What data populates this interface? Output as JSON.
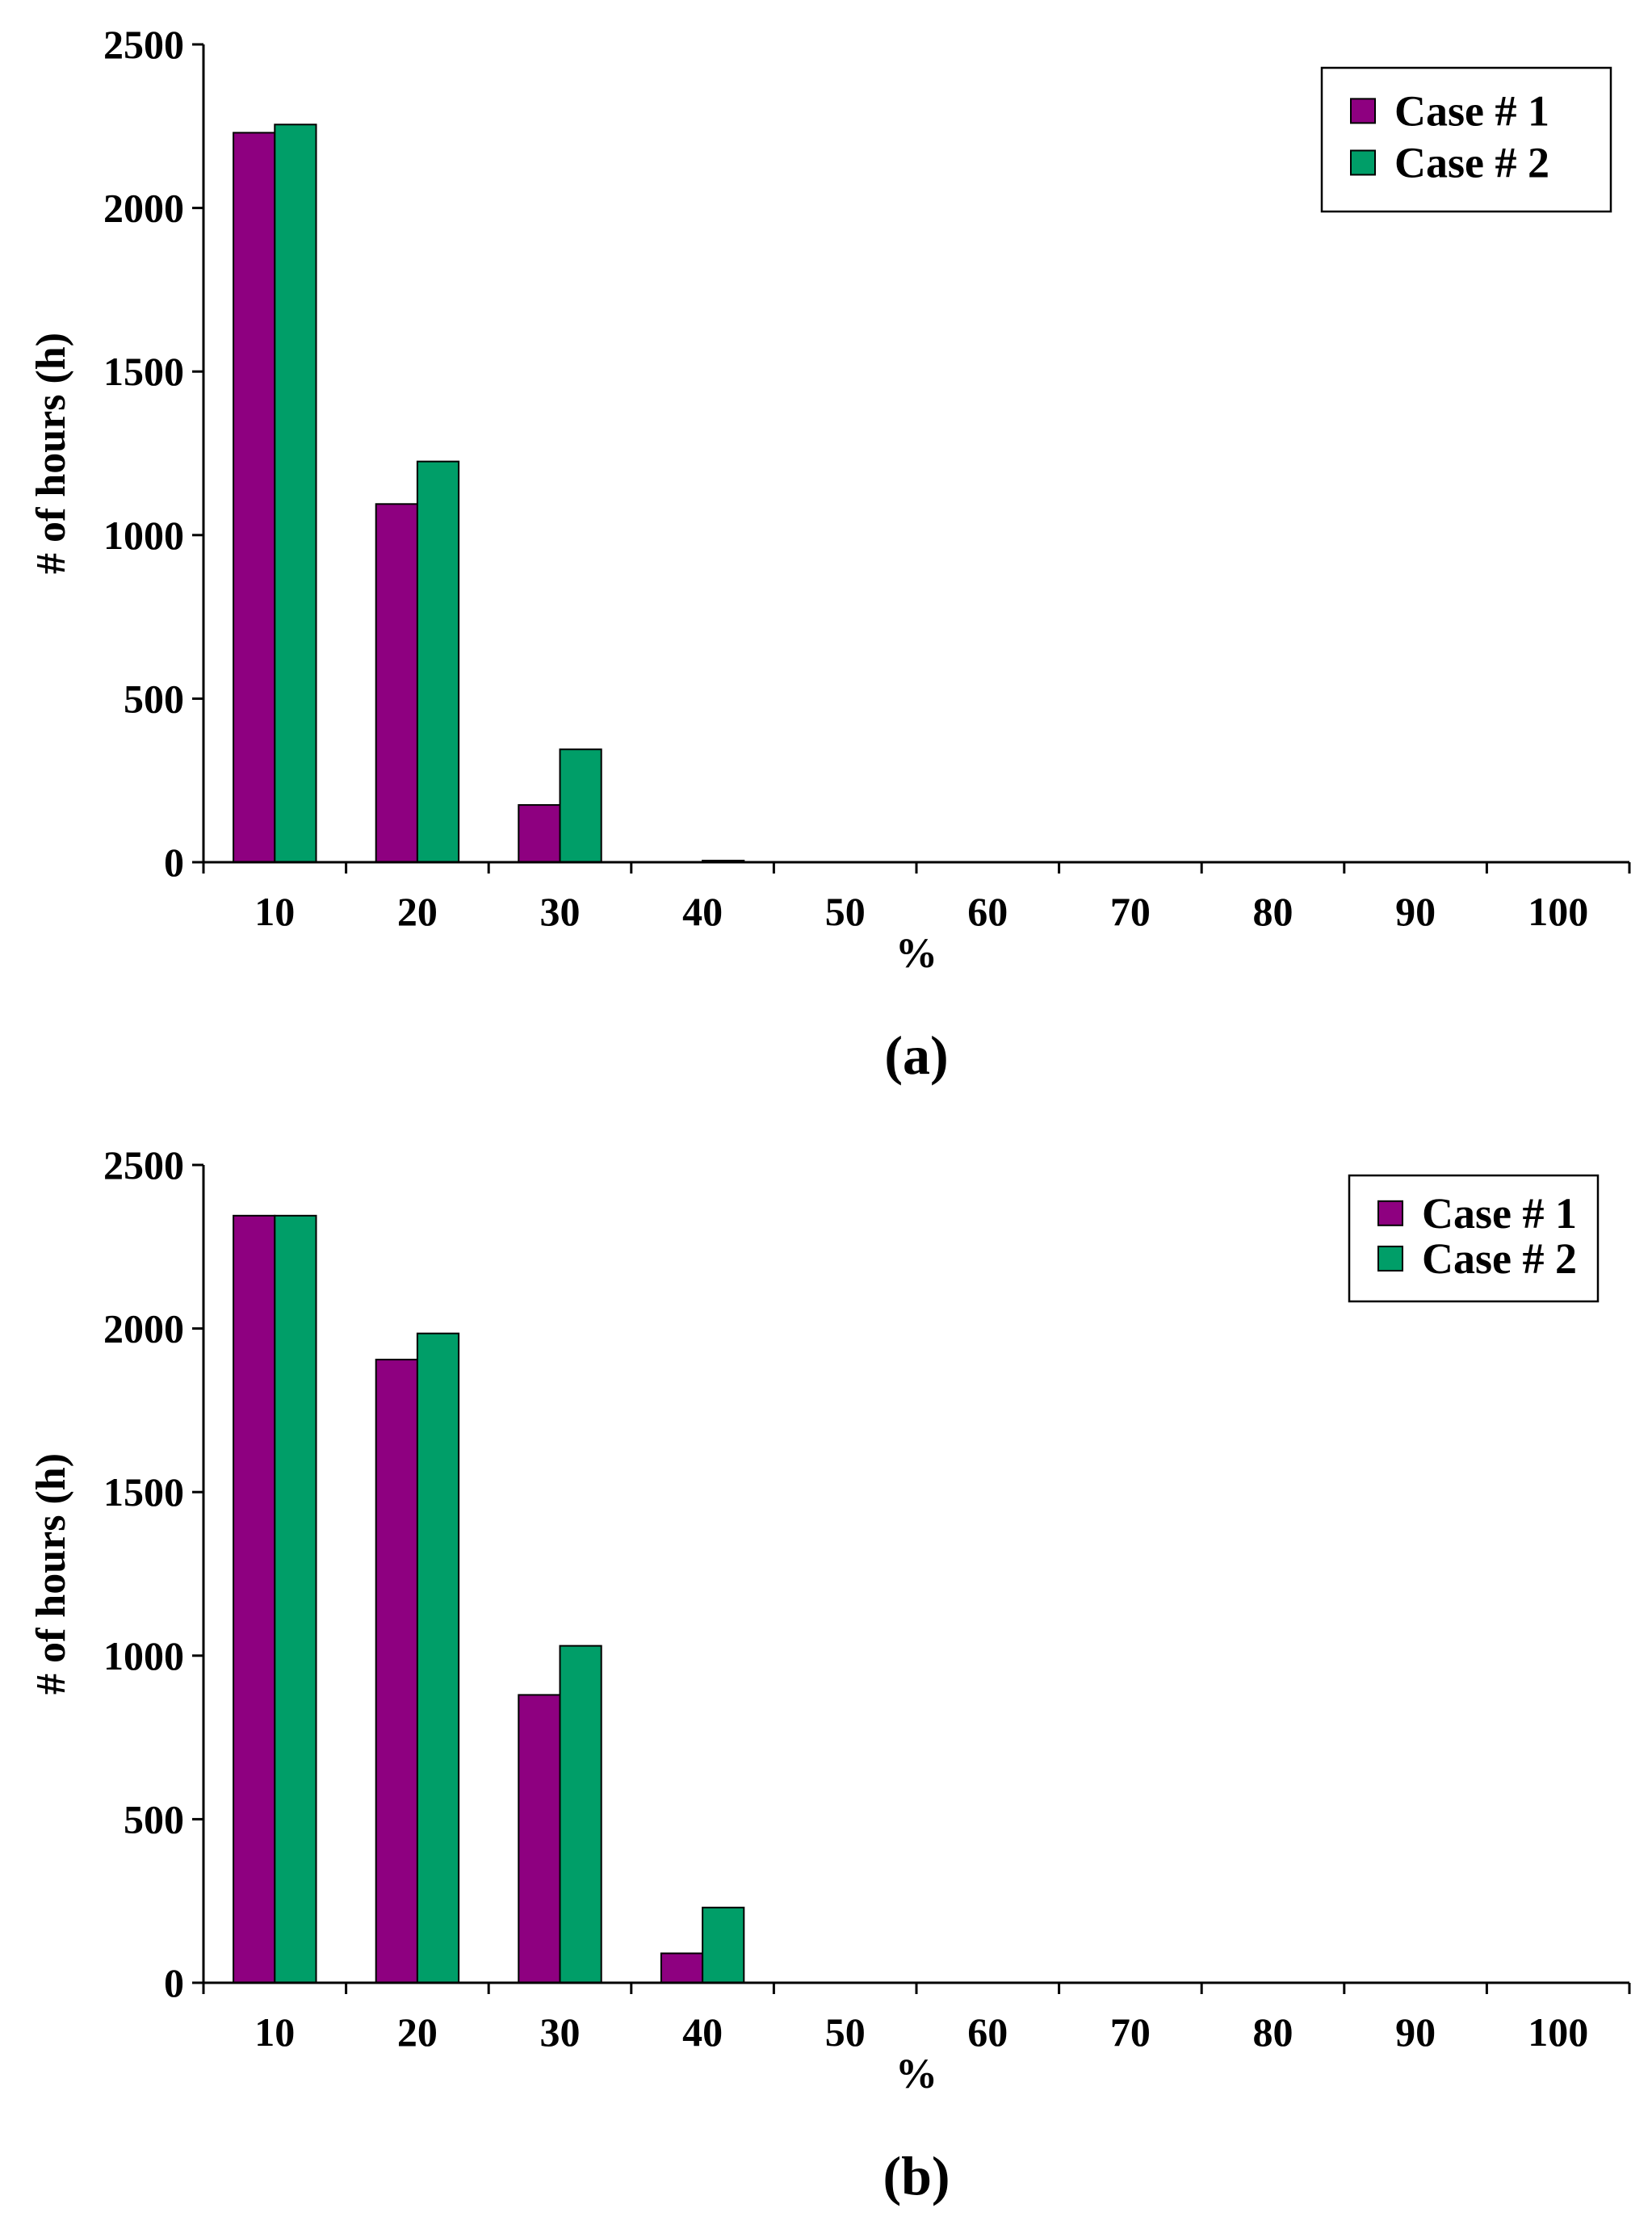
{
  "chart_data": [
    {
      "type": "bar",
      "panel_label": "(a)",
      "categories": [
        "10",
        "20",
        "30",
        "40",
        "50",
        "60",
        "70",
        "80",
        "90",
        "100"
      ],
      "series": [
        {
          "name": "Case # 1",
          "values": [
            2230,
            1095,
            175,
            0,
            0,
            0,
            0,
            0,
            0,
            0
          ]
        },
        {
          "name": "Case # 2",
          "values": [
            2255,
            1225,
            345,
            5,
            0,
            0,
            0,
            0,
            0,
            0
          ]
        }
      ],
      "xlabel": "%",
      "ylabel": "# of hours (h)",
      "ylim": [
        0,
        2500
      ],
      "yticks": [
        "0",
        "500",
        "1000",
        "1500",
        "2000",
        "2500"
      ],
      "grid": false,
      "legend_position": "top-right"
    },
    {
      "type": "bar",
      "panel_label": "(b)",
      "categories": [
        "10",
        "20",
        "30",
        "40",
        "50",
        "60",
        "70",
        "80",
        "90",
        "100"
      ],
      "series": [
        {
          "name": "Case # 1",
          "values": [
            2345,
            1905,
            880,
            90,
            0,
            0,
            0,
            0,
            0,
            0
          ]
        },
        {
          "name": "Case # 2",
          "values": [
            2345,
            1985,
            1030,
            230,
            0,
            0,
            0,
            0,
            0,
            0
          ]
        }
      ],
      "xlabel": "%",
      "ylabel": "# of hours (h)",
      "ylim": [
        0,
        2500
      ],
      "yticks": [
        "0",
        "500",
        "1000",
        "1500",
        "2000",
        "2500"
      ],
      "grid": false,
      "legend_position": "top-right"
    }
  ],
  "colors": {
    "case1": "#8e0080",
    "case2": "#009e68",
    "axis": "#000000"
  }
}
